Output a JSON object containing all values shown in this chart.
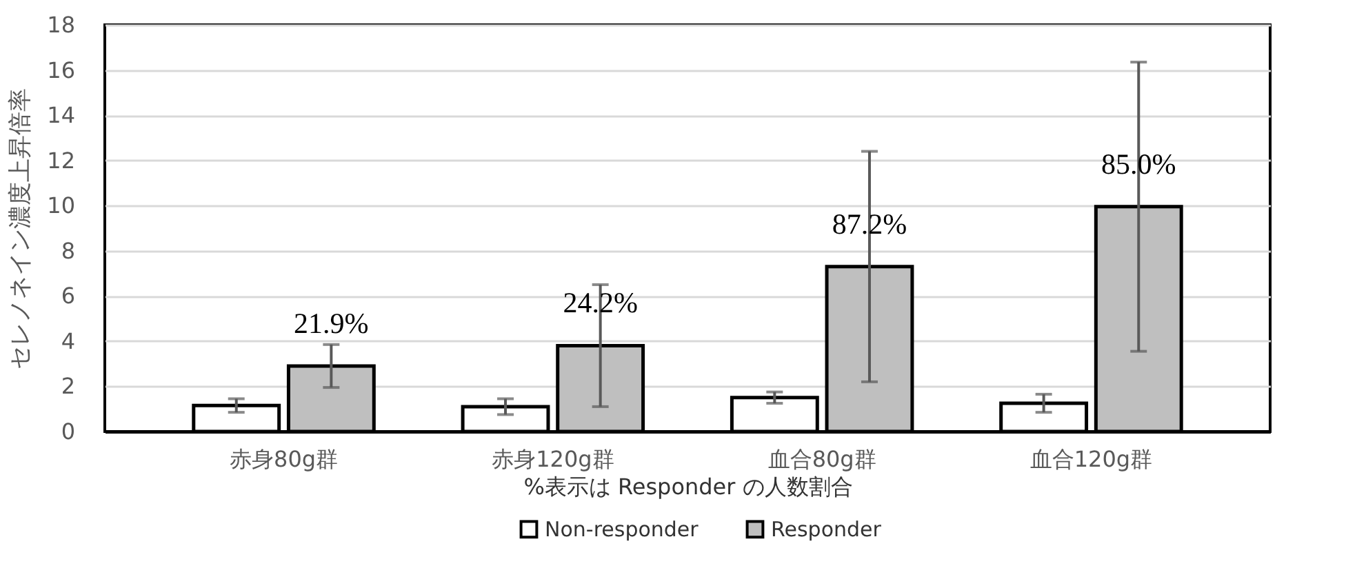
{
  "chart_data": {
    "type": "bar",
    "categories": [
      "赤身80g群",
      "赤身120g群",
      "血合80g群",
      "血合120g群"
    ],
    "series": [
      {
        "name": "Non-responder",
        "color": "#ffffff",
        "values": [
          1.15,
          1.1,
          1.5,
          1.25
        ],
        "errors": [
          0.3,
          0.35,
          0.25,
          0.4
        ]
      },
      {
        "name": "Responder",
        "color": "#bfbfbf",
        "values": [
          2.9,
          3.8,
          7.3,
          9.95
        ],
        "errors": [
          0.95,
          2.7,
          5.1,
          6.4
        ]
      }
    ],
    "xlabel": "%表示は Responder の人数割合",
    "ylabel": "セレノネイン濃度上昇倍率",
    "ylim": [
      0,
      18
    ],
    "yticks": [
      0,
      2,
      4,
      6,
      8,
      10,
      12,
      14,
      16,
      18
    ],
    "grid": "y",
    "legend": "bottom",
    "annotations": [
      "21.9%",
      "24.2%",
      "87.2%",
      "85.0%"
    ]
  }
}
